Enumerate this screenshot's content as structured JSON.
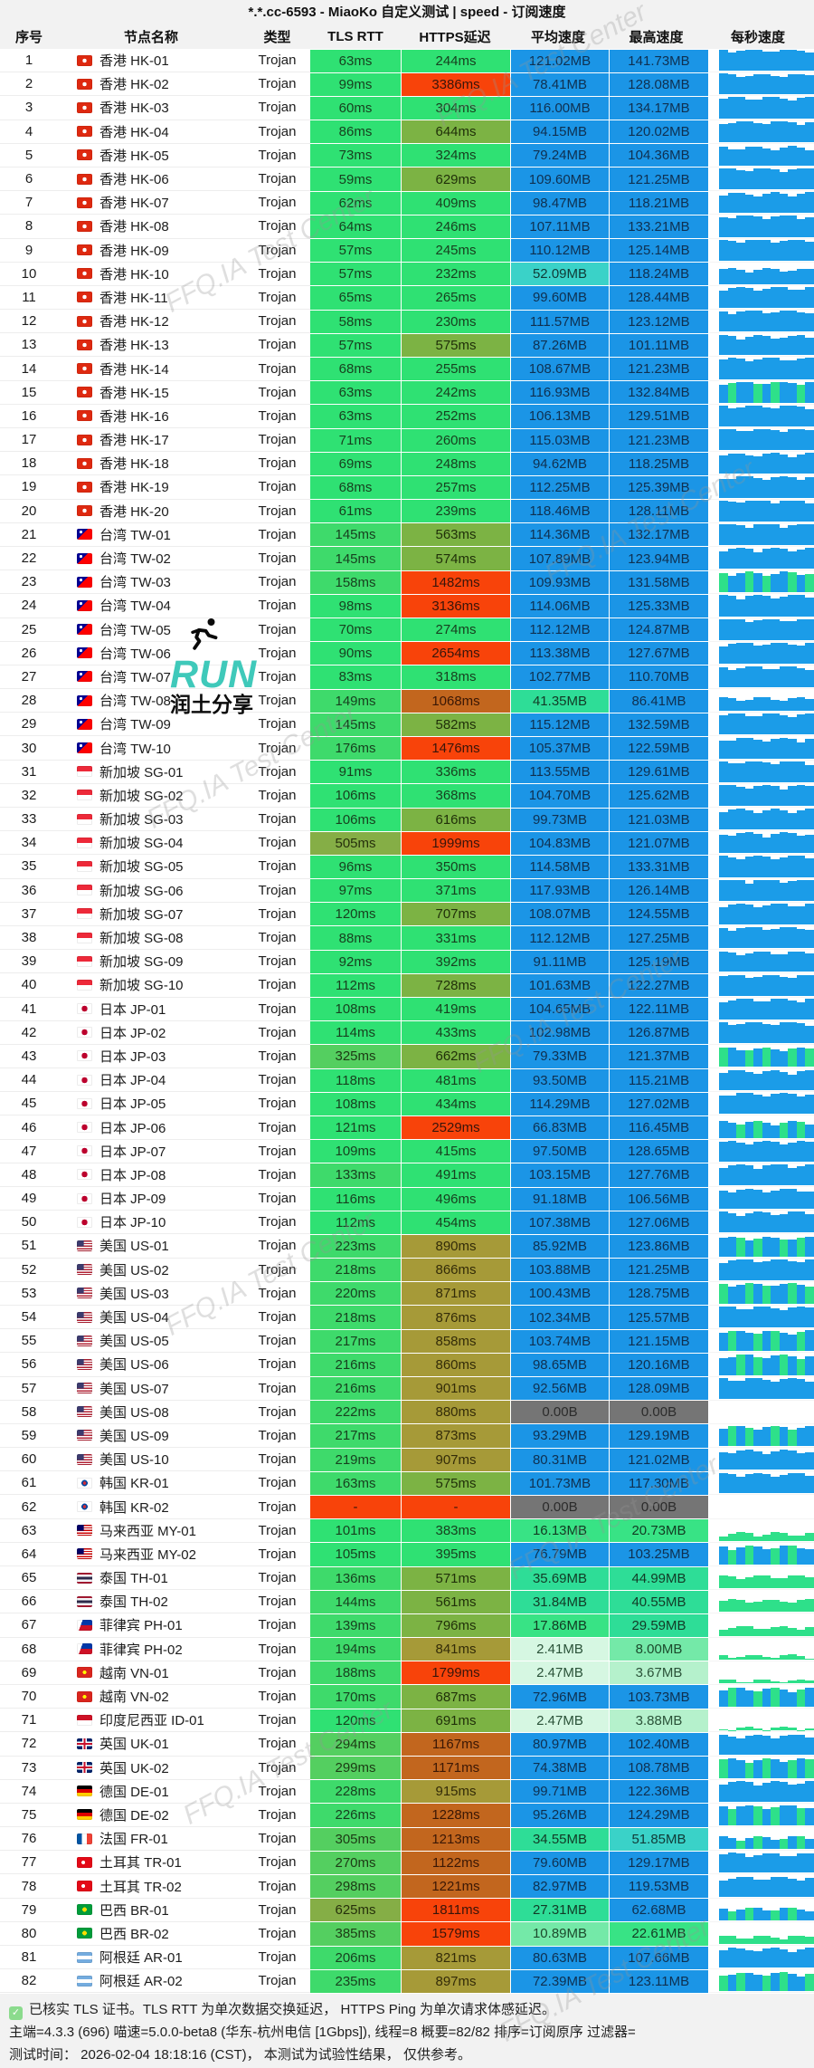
{
  "title": "*.*.cc-6593 - MiaoKo 自定义测试 | speed - 订阅速度",
  "columns": [
    "序号",
    "节点名称",
    "类型",
    "TLS RTT",
    "HTTPS延迟",
    "平均速度",
    "最高速度",
    "每秒速度"
  ],
  "watermark_text": "FFQ.IA Test Center",
  "overlay": {
    "run_label": "RUN",
    "share_label": "润土分享"
  },
  "footer": {
    "line1": "已核实 TLS 证书。TLS RTT 为单次数据交换延迟， HTTPS Ping 为单次请求体感延迟。",
    "line2": "主端=4.3.3 (696) 喵速=5.0.0-beta8 (华东-杭州电信 [1Gbps]), 线程=8 概要=82/82 排序=订阅原序 过滤器=",
    "line3": "测试时间： 2026-02-04 18:18:16 (CST)， 本测试为试验性结果， 仅供参考。"
  },
  "colors": {
    "green_bright": "#2fe173",
    "green_mid": "#3eda6b",
    "green_dark": "#54cf60",
    "olive_light": "#85ae46",
    "olive": "#7cb344",
    "mustard": "#a69a38",
    "burnt_orange": "#c2661e",
    "red": "#f8430a",
    "blue": "#1b95e6",
    "cyan": "#3ad2c8",
    "teal_green": "#2edd97",
    "speed_green": "#38e385",
    "speed_light": "#74e9a8",
    "speed_pale": "#b5f1cc",
    "speed_palest": "#d6f7e2",
    "gray_zero": "#757575",
    "bar_blue": "#1b9ce8",
    "bar_green": "#2ee08a"
  },
  "rows": [
    {
      "n": 1,
      "cc": "hk",
      "name": "香港 HK-01",
      "type": "Trojan",
      "tls": "63ms",
      "https": "244ms",
      "avg": "121.02MB",
      "max": "141.73MB",
      "spark": "b:95"
    },
    {
      "n": 2,
      "cc": "hk",
      "name": "香港 HK-02",
      "type": "Trojan",
      "tls": "99ms",
      "https": "3386ms",
      "avg": "78.41MB",
      "max": "128.08MB",
      "spark": "b:88"
    },
    {
      "n": 3,
      "cc": "hk",
      "name": "香港 HK-03",
      "type": "Trojan",
      "tls": "60ms",
      "https": "304ms",
      "avg": "116.00MB",
      "max": "134.17MB",
      "spark": "b:93"
    },
    {
      "n": 4,
      "cc": "hk",
      "name": "香港 HK-04",
      "type": "Trojan",
      "tls": "86ms",
      "https": "644ms",
      "avg": "94.15MB",
      "max": "120.02MB",
      "spark": "b:90"
    },
    {
      "n": 5,
      "cc": "hk",
      "name": "香港 HK-05",
      "type": "Trojan",
      "tls": "73ms",
      "https": "324ms",
      "avg": "79.24MB",
      "max": "104.36MB",
      "spark": "b:82"
    },
    {
      "n": 6,
      "cc": "hk",
      "name": "香港 HK-06",
      "type": "Trojan",
      "tls": "59ms",
      "https": "629ms",
      "avg": "109.60MB",
      "max": "121.25MB",
      "spark": "b:92"
    },
    {
      "n": 7,
      "cc": "hk",
      "name": "香港 HK-07",
      "type": "Trojan",
      "tls": "62ms",
      "https": "409ms",
      "avg": "98.47MB",
      "max": "118.21MB",
      "spark": "b:88"
    },
    {
      "n": 8,
      "cc": "hk",
      "name": "香港 HK-08",
      "type": "Trojan",
      "tls": "64ms",
      "https": "246ms",
      "avg": "107.11MB",
      "max": "133.21MB",
      "spark": "b:93"
    },
    {
      "n": 9,
      "cc": "hk",
      "name": "香港 HK-09",
      "type": "Trojan",
      "tls": "57ms",
      "https": "245ms",
      "avg": "110.12MB",
      "max": "125.14MB",
      "spark": "b:93"
    },
    {
      "n": 10,
      "cc": "hk",
      "name": "香港 HK-10",
      "type": "Trojan",
      "tls": "57ms",
      "https": "232ms",
      "avg": "52.09MB",
      "max": "118.24MB",
      "spark": "b:65"
    },
    {
      "n": 11,
      "cc": "hk",
      "name": "香港 HK-11",
      "type": "Trojan",
      "tls": "65ms",
      "https": "265ms",
      "avg": "99.60MB",
      "max": "128.44MB",
      "spark": "b:90"
    },
    {
      "n": 12,
      "cc": "hk",
      "name": "香港 HK-12",
      "type": "Trojan",
      "tls": "58ms",
      "https": "230ms",
      "avg": "111.57MB",
      "max": "123.12MB",
      "spark": "b:93"
    },
    {
      "n": 13,
      "cc": "hk",
      "name": "香港 HK-13",
      "type": "Trojan",
      "tls": "57ms",
      "https": "575ms",
      "avg": "87.26MB",
      "max": "101.11MB",
      "spark": "b:85"
    },
    {
      "n": 14,
      "cc": "hk",
      "name": "香港 HK-14",
      "type": "Trojan",
      "tls": "68ms",
      "https": "255ms",
      "avg": "108.67MB",
      "max": "121.23MB",
      "spark": "b:92"
    },
    {
      "n": 15,
      "cc": "hk",
      "name": "香港 HK-15",
      "type": "Trojan",
      "tls": "63ms",
      "https": "242ms",
      "avg": "116.93MB",
      "max": "132.84MB",
      "spark": "m:92"
    },
    {
      "n": 16,
      "cc": "hk",
      "name": "香港 HK-16",
      "type": "Trojan",
      "tls": "63ms",
      "https": "252ms",
      "avg": "106.13MB",
      "max": "129.51MB",
      "spark": "b:90"
    },
    {
      "n": 17,
      "cc": "hk",
      "name": "香港 HK-17",
      "type": "Trojan",
      "tls": "71ms",
      "https": "260ms",
      "avg": "115.03MB",
      "max": "121.23MB",
      "spark": "b:93"
    },
    {
      "n": 18,
      "cc": "hk",
      "name": "香港 HK-18",
      "type": "Trojan",
      "tls": "69ms",
      "https": "248ms",
      "avg": "94.62MB",
      "max": "118.25MB",
      "spark": "b:88"
    },
    {
      "n": 19,
      "cc": "hk",
      "name": "香港 HK-19",
      "type": "Trojan",
      "tls": "68ms",
      "https": "257ms",
      "avg": "112.25MB",
      "max": "125.39MB",
      "spark": "b:93"
    },
    {
      "n": 20,
      "cc": "hk",
      "name": "香港 HK-20",
      "type": "Trojan",
      "tls": "61ms",
      "https": "239ms",
      "avg": "118.46MB",
      "max": "128.11MB",
      "spark": "b:94"
    },
    {
      "n": 21,
      "cc": "tw",
      "name": "台湾 TW-01",
      "type": "Trojan",
      "tls": "145ms",
      "https": "563ms",
      "avg": "114.36MB",
      "max": "132.17MB",
      "spark": "b:92"
    },
    {
      "n": 22,
      "cc": "tw",
      "name": "台湾 TW-02",
      "type": "Trojan",
      "tls": "145ms",
      "https": "574ms",
      "avg": "107.89MB",
      "max": "123.94MB",
      "spark": "b:90"
    },
    {
      "n": 23,
      "cc": "tw",
      "name": "台湾 TW-03",
      "type": "Trojan",
      "tls": "158ms",
      "https": "1482ms",
      "avg": "109.93MB",
      "max": "131.58MB",
      "spark": "m:88"
    },
    {
      "n": 24,
      "cc": "tw",
      "name": "台湾 TW-04",
      "type": "Trojan",
      "tls": "98ms",
      "https": "3136ms",
      "avg": "114.06MB",
      "max": "125.33MB",
      "spark": "b:92"
    },
    {
      "n": 25,
      "cc": "tw",
      "name": "台湾 TW-05",
      "type": "Trojan",
      "tls": "70ms",
      "https": "274ms",
      "avg": "112.12MB",
      "max": "124.87MB",
      "spark": "b:92"
    },
    {
      "n": 26,
      "cc": "tw",
      "name": "台湾 TW-06",
      "type": "Trojan",
      "tls": "90ms",
      "https": "2654ms",
      "avg": "113.38MB",
      "max": "127.67MB",
      "spark": "b:92"
    },
    {
      "n": 27,
      "cc": "tw",
      "name": "台湾 TW-07",
      "type": "Trojan",
      "tls": "83ms",
      "https": "318ms",
      "avg": "102.77MB",
      "max": "110.70MB",
      "spark": "b:90"
    },
    {
      "n": 28,
      "cc": "tw",
      "name": "台湾 TW-08",
      "type": "Trojan",
      "tls": "149ms",
      "https": "1068ms",
      "avg": "41.35MB",
      "max": "86.41MB",
      "spark": "b:55"
    },
    {
      "n": 29,
      "cc": "tw",
      "name": "台湾 TW-09",
      "type": "Trojan",
      "tls": "145ms",
      "https": "582ms",
      "avg": "115.12MB",
      "max": "132.59MB",
      "spark": "b:92"
    },
    {
      "n": 30,
      "cc": "tw",
      "name": "台湾 TW-10",
      "type": "Trojan",
      "tls": "176ms",
      "https": "1476ms",
      "avg": "105.37MB",
      "max": "122.59MB",
      "spark": "b:88"
    },
    {
      "n": 31,
      "cc": "sg",
      "name": "新加坡 SG-01",
      "type": "Trojan",
      "tls": "91ms",
      "https": "336ms",
      "avg": "113.55MB",
      "max": "129.61MB",
      "spark": "b:92"
    },
    {
      "n": 32,
      "cc": "sg",
      "name": "新加坡 SG-02",
      "type": "Trojan",
      "tls": "106ms",
      "https": "368ms",
      "avg": "104.70MB",
      "max": "125.62MB",
      "spark": "b:90"
    },
    {
      "n": 33,
      "cc": "sg",
      "name": "新加坡 SG-03",
      "type": "Trojan",
      "tls": "106ms",
      "https": "616ms",
      "avg": "99.73MB",
      "max": "121.03MB",
      "spark": "b:88"
    },
    {
      "n": 34,
      "cc": "sg",
      "name": "新加坡 SG-04",
      "type": "Trojan",
      "tls": "505ms",
      "https": "1999ms",
      "avg": "104.83MB",
      "max": "121.07MB",
      "spark": "b:88"
    },
    {
      "n": 35,
      "cc": "sg",
      "name": "新加坡 SG-05",
      "type": "Trojan",
      "tls": "96ms",
      "https": "350ms",
      "avg": "114.58MB",
      "max": "133.31MB",
      "spark": "b:92"
    },
    {
      "n": 36,
      "cc": "sg",
      "name": "新加坡 SG-06",
      "type": "Trojan",
      "tls": "97ms",
      "https": "371ms",
      "avg": "117.93MB",
      "max": "126.14MB",
      "spark": "b:93"
    },
    {
      "n": 37,
      "cc": "sg",
      "name": "新加坡 SG-07",
      "type": "Trojan",
      "tls": "120ms",
      "https": "707ms",
      "avg": "108.07MB",
      "max": "124.55MB",
      "spark": "b:90"
    },
    {
      "n": 38,
      "cc": "sg",
      "name": "新加坡 SG-08",
      "type": "Trojan",
      "tls": "88ms",
      "https": "331ms",
      "avg": "112.12MB",
      "max": "127.25MB",
      "spark": "b:92"
    },
    {
      "n": 39,
      "cc": "sg",
      "name": "新加坡 SG-09",
      "type": "Trojan",
      "tls": "92ms",
      "https": "392ms",
      "avg": "91.11MB",
      "max": "125.19MB",
      "spark": "b:86"
    },
    {
      "n": 40,
      "cc": "sg",
      "name": "新加坡 SG-10",
      "type": "Trojan",
      "tls": "112ms",
      "https": "728ms",
      "avg": "101.63MB",
      "max": "122.27MB",
      "spark": "b:88"
    },
    {
      "n": 41,
      "cc": "jp",
      "name": "日本 JP-01",
      "type": "Trojan",
      "tls": "108ms",
      "https": "419ms",
      "avg": "104.65MB",
      "max": "122.11MB",
      "spark": "b:90"
    },
    {
      "n": 42,
      "cc": "jp",
      "name": "日本 JP-02",
      "type": "Trojan",
      "tls": "114ms",
      "https": "433ms",
      "avg": "102.98MB",
      "max": "126.87MB",
      "spark": "b:90"
    },
    {
      "n": 43,
      "cc": "jp",
      "name": "日本 JP-03",
      "type": "Trojan",
      "tls": "325ms",
      "https": "662ms",
      "avg": "79.33MB",
      "max": "121.37MB",
      "spark": "m:80"
    },
    {
      "n": 44,
      "cc": "jp",
      "name": "日本 JP-04",
      "type": "Trojan",
      "tls": "118ms",
      "https": "481ms",
      "avg": "93.50MB",
      "max": "115.21MB",
      "spark": "b:86"
    },
    {
      "n": 45,
      "cc": "jp",
      "name": "日本 JP-05",
      "type": "Trojan",
      "tls": "108ms",
      "https": "434ms",
      "avg": "114.29MB",
      "max": "127.02MB",
      "spark": "b:92"
    },
    {
      "n": 46,
      "cc": "jp",
      "name": "日本 JP-06",
      "type": "Trojan",
      "tls": "121ms",
      "https": "2529ms",
      "avg": "66.83MB",
      "max": "116.45MB",
      "spark": "m:70"
    },
    {
      "n": 47,
      "cc": "jp",
      "name": "日本 JP-07",
      "type": "Trojan",
      "tls": "109ms",
      "https": "415ms",
      "avg": "97.50MB",
      "max": "128.65MB",
      "spark": "b:88"
    },
    {
      "n": 48,
      "cc": "jp",
      "name": "日本 JP-08",
      "type": "Trojan",
      "tls": "133ms",
      "https": "491ms",
      "avg": "103.15MB",
      "max": "127.76MB",
      "spark": "b:90"
    },
    {
      "n": 49,
      "cc": "jp",
      "name": "日本 JP-09",
      "type": "Trojan",
      "tls": "116ms",
      "https": "496ms",
      "avg": "91.18MB",
      "max": "106.56MB",
      "spark": "b:86"
    },
    {
      "n": 50,
      "cc": "jp",
      "name": "日本 JP-10",
      "type": "Trojan",
      "tls": "112ms",
      "https": "454ms",
      "avg": "107.38MB",
      "max": "127.06MB",
      "spark": "b:90"
    },
    {
      "n": 51,
      "cc": "us",
      "name": "美国 US-01",
      "type": "Trojan",
      "tls": "223ms",
      "https": "890ms",
      "avg": "85.92MB",
      "max": "123.86MB",
      "spark": "m:82"
    },
    {
      "n": 52,
      "cc": "us",
      "name": "美国 US-02",
      "type": "Trojan",
      "tls": "218ms",
      "https": "866ms",
      "avg": "103.88MB",
      "max": "121.25MB",
      "spark": "b:90"
    },
    {
      "n": 53,
      "cc": "us",
      "name": "美国 US-03",
      "type": "Trojan",
      "tls": "220ms",
      "https": "871ms",
      "avg": "100.43MB",
      "max": "128.75MB",
      "spark": "m:88"
    },
    {
      "n": 54,
      "cc": "us",
      "name": "美国 US-04",
      "type": "Trojan",
      "tls": "218ms",
      "https": "876ms",
      "avg": "102.34MB",
      "max": "125.57MB",
      "spark": "b:90"
    },
    {
      "n": 55,
      "cc": "us",
      "name": "美国 US-05",
      "type": "Trojan",
      "tls": "217ms",
      "https": "858ms",
      "avg": "103.74MB",
      "max": "121.15MB",
      "spark": "m:88"
    },
    {
      "n": 56,
      "cc": "us",
      "name": "美国 US-06",
      "type": "Trojan",
      "tls": "216ms",
      "https": "860ms",
      "avg": "98.65MB",
      "max": "120.16MB",
      "spark": "m:86"
    },
    {
      "n": 57,
      "cc": "us",
      "name": "美国 US-07",
      "type": "Trojan",
      "tls": "216ms",
      "https": "901ms",
      "avg": "92.56MB",
      "max": "128.09MB",
      "spark": "b:88"
    },
    {
      "n": 58,
      "cc": "us",
      "name": "美国 US-08",
      "type": "Trojan",
      "tls": "222ms",
      "https": "880ms",
      "avg": "0.00B",
      "max": "0.00B",
      "spark": "w:0"
    },
    {
      "n": 59,
      "cc": "us",
      "name": "美国 US-09",
      "type": "Trojan",
      "tls": "217ms",
      "https": "873ms",
      "avg": "93.29MB",
      "max": "129.19MB",
      "spark": "m:86"
    },
    {
      "n": 60,
      "cc": "us",
      "name": "美国 US-10",
      "type": "Trojan",
      "tls": "219ms",
      "https": "907ms",
      "avg": "80.31MB",
      "max": "121.02MB",
      "spark": "b:84"
    },
    {
      "n": 61,
      "cc": "kr",
      "name": "韩国 KR-01",
      "type": "Trojan",
      "tls": "163ms",
      "https": "575ms",
      "avg": "101.73MB",
      "max": "117.30MB",
      "spark": "b:88"
    },
    {
      "n": 62,
      "cc": "kr",
      "name": "韩国 KR-02",
      "type": "Trojan",
      "tls": "-",
      "https": "-",
      "avg": "0.00B",
      "max": "0.00B",
      "spark": "w:0"
    },
    {
      "n": 63,
      "cc": "my",
      "name": "马来西亚 MY-01",
      "type": "Trojan",
      "tls": "101ms",
      "https": "383ms",
      "avg": "16.13MB",
      "max": "20.73MB",
      "spark": "g:30"
    },
    {
      "n": 64,
      "cc": "my",
      "name": "马来西亚 MY-02",
      "type": "Trojan",
      "tls": "105ms",
      "https": "395ms",
      "avg": "76.79MB",
      "max": "103.25MB",
      "spark": "m:80"
    },
    {
      "n": 65,
      "cc": "th",
      "name": "泰国 TH-01",
      "type": "Trojan",
      "tls": "136ms",
      "https": "571ms",
      "avg": "35.69MB",
      "max": "44.99MB",
      "spark": "g:52"
    },
    {
      "n": 66,
      "cc": "th",
      "name": "泰国 TH-02",
      "type": "Trojan",
      "tls": "144ms",
      "https": "561ms",
      "avg": "31.84MB",
      "max": "40.55MB",
      "spark": "g:50"
    },
    {
      "n": 67,
      "cc": "ph",
      "name": "菲律宾 PH-01",
      "type": "Trojan",
      "tls": "139ms",
      "https": "796ms",
      "avg": "17.86MB",
      "max": "29.59MB",
      "spark": "g:35"
    },
    {
      "n": 68,
      "cc": "ph",
      "name": "菲律宾 PH-02",
      "type": "Trojan",
      "tls": "194ms",
      "https": "841ms",
      "avg": "2.41MB",
      "max": "8.00MB",
      "spark": "g:12"
    },
    {
      "n": 69,
      "cc": "vn",
      "name": "越南 VN-01",
      "type": "Trojan",
      "tls": "188ms",
      "https": "1799ms",
      "avg": "2.47MB",
      "max": "3.67MB",
      "spark": "g:8"
    },
    {
      "n": 70,
      "cc": "vn",
      "name": "越南 VN-02",
      "type": "Trojan",
      "tls": "170ms",
      "https": "687ms",
      "avg": "72.96MB",
      "max": "103.73MB",
      "spark": "m:80"
    },
    {
      "n": 71,
      "cc": "id",
      "name": "印度尼西亚 ID-01",
      "type": "Trojan",
      "tls": "120ms",
      "https": "691ms",
      "avg": "2.47MB",
      "max": "3.88MB",
      "spark": "g:8"
    },
    {
      "n": 72,
      "cc": "gb",
      "name": "英国 UK-01",
      "type": "Trojan",
      "tls": "294ms",
      "https": "1167ms",
      "avg": "80.97MB",
      "max": "102.40MB",
      "spark": "b:84"
    },
    {
      "n": 73,
      "cc": "gb",
      "name": "英国 UK-02",
      "type": "Trojan",
      "tls": "299ms",
      "https": "1171ms",
      "avg": "74.38MB",
      "max": "108.78MB",
      "spark": "m:82"
    },
    {
      "n": 74,
      "cc": "de",
      "name": "德国 DE-01",
      "type": "Trojan",
      "tls": "228ms",
      "https": "915ms",
      "avg": "99.71MB",
      "max": "122.36MB",
      "spark": "b:88"
    },
    {
      "n": 75,
      "cc": "de",
      "name": "德国 DE-02",
      "type": "Trojan",
      "tls": "226ms",
      "https": "1228ms",
      "avg": "95.26MB",
      "max": "124.29MB",
      "spark": "m:86"
    },
    {
      "n": 76,
      "cc": "fr",
      "name": "法国 FR-01",
      "type": "Trojan",
      "tls": "305ms",
      "https": "1213ms",
      "avg": "34.55MB",
      "max": "51.85MB",
      "spark": "m:50"
    },
    {
      "n": 77,
      "cc": "tr",
      "name": "土耳其 TR-01",
      "type": "Trojan",
      "tls": "270ms",
      "https": "1122ms",
      "avg": "79.60MB",
      "max": "129.17MB",
      "spark": "b:84"
    },
    {
      "n": 78,
      "cc": "tr",
      "name": "土耳其 TR-02",
      "type": "Trojan",
      "tls": "298ms",
      "https": "1221ms",
      "avg": "82.97MB",
      "max": "119.53MB",
      "spark": "b:84"
    },
    {
      "n": 79,
      "cc": "br",
      "name": "巴西 BR-01",
      "type": "Trojan",
      "tls": "625ms",
      "https": "1811ms",
      "avg": "27.31MB",
      "max": "62.68MB",
      "spark": "m:50"
    },
    {
      "n": 80,
      "cc": "br",
      "name": "巴西 BR-02",
      "type": "Trojan",
      "tls": "385ms",
      "https": "1579ms",
      "avg": "10.89MB",
      "max": "22.61MB",
      "spark": "g:30"
    },
    {
      "n": 81,
      "cc": "ar",
      "name": "阿根廷 AR-01",
      "type": "Trojan",
      "tls": "206ms",
      "https": "821ms",
      "avg": "80.63MB",
      "max": "107.66MB",
      "spark": "b:84"
    },
    {
      "n": 82,
      "cc": "ar",
      "name": "阿根廷 AR-02",
      "type": "Trojan",
      "tls": "235ms",
      "https": "897ms",
      "avg": "72.39MB",
      "max": "123.11MB",
      "spark": "m:80"
    }
  ]
}
